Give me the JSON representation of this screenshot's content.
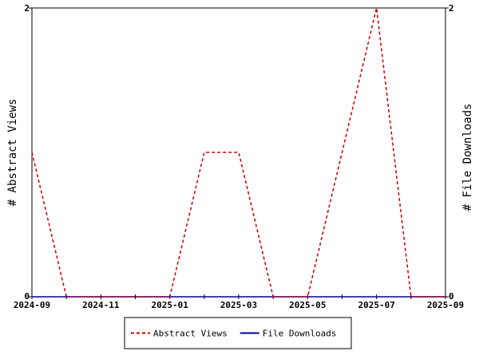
{
  "chart_data": {
    "type": "line",
    "categories": [
      "2024-09",
      null,
      "2024-11",
      null,
      "2025-01",
      null,
      "2025-03",
      null,
      "2025-05",
      null,
      "2025-07",
      null,
      "2025-09"
    ],
    "series": [
      {
        "name": "Abstract Views",
        "color": "#cc0000",
        "dash": true,
        "values": [
          1,
          0,
          0,
          0,
          0,
          1,
          1,
          0,
          0,
          1,
          2,
          0,
          0
        ]
      },
      {
        "name": "File Downloads",
        "color": "#000099",
        "axis": "y2",
        "values": [
          0,
          0,
          0,
          0,
          0,
          0,
          0,
          0,
          0,
          0,
          0,
          0,
          0
        ]
      }
    ],
    "ylabel": "# Abstract Views",
    "y2label": "# File Downloads",
    "ylim": [
      0,
      2
    ],
    "yticks": [
      0,
      2
    ],
    "y2lim": [
      0,
      2
    ],
    "y2ticks": [
      0,
      2
    ],
    "legend": "bottom"
  }
}
